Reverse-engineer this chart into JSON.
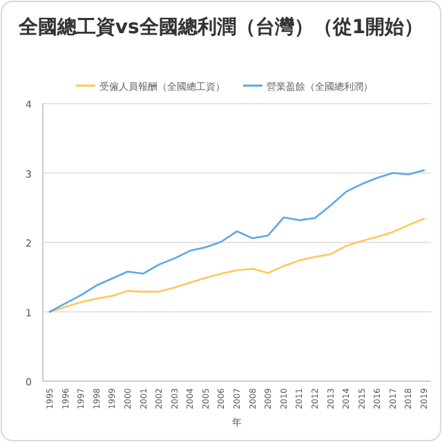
{
  "chart_data": {
    "type": "line",
    "title": "全國總工資vs全國總利潤（台灣）（從1開始）",
    "xlabel": "年",
    "categories": [
      "1995",
      "1996",
      "1997",
      "1998",
      "1999",
      "2000",
      "2001",
      "2002",
      "2003",
      "2004",
      "2005",
      "2006",
      "2007",
      "2008",
      "2009",
      "2010",
      "2011",
      "2012",
      "2013",
      "2014",
      "2015",
      "2016",
      "2017",
      "2018",
      "2019"
    ],
    "series": [
      {
        "name": "受僱人員報酬（全國總工資）",
        "color": "#ffc758",
        "values": [
          1.0,
          1.07,
          1.14,
          1.19,
          1.23,
          1.3,
          1.29,
          1.29,
          1.35,
          1.42,
          1.49,
          1.55,
          1.6,
          1.62,
          1.56,
          1.66,
          1.74,
          1.79,
          1.83,
          1.95,
          2.02,
          2.08,
          2.15,
          2.25,
          2.34
        ]
      },
      {
        "name": "營業盈餘（全國總利潤）",
        "color": "#5aa8e6",
        "values": [
          1.0,
          1.12,
          1.24,
          1.38,
          1.48,
          1.58,
          1.55,
          1.68,
          1.77,
          1.88,
          1.93,
          2.01,
          2.16,
          2.06,
          2.1,
          2.36,
          2.32,
          2.35,
          2.53,
          2.73,
          2.84,
          2.93,
          3.0,
          2.98,
          3.04
        ]
      }
    ],
    "ylim": [
      0,
      4
    ],
    "yticks": [
      0,
      1,
      2,
      3,
      4
    ],
    "grid": "y",
    "legend": "top",
    "marker": "none",
    "line_style": "solid"
  }
}
